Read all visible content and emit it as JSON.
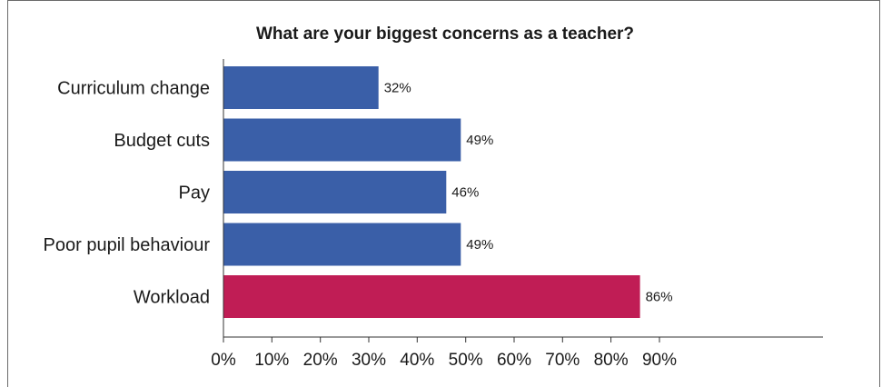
{
  "chart_data": {
    "type": "bar",
    "orientation": "horizontal",
    "title": "What are your biggest concerns as a teacher?",
    "xlabel": "",
    "ylabel": "",
    "categories": [
      "Curriculum change",
      "Budget cuts",
      "Pay",
      "Poor pupil behaviour",
      "Workload"
    ],
    "values": [
      32,
      49,
      46,
      49,
      86
    ],
    "data_labels": [
      "32%",
      "49%",
      "46%",
      "49%",
      "86%"
    ],
    "bar_colors": [
      "#3a5fa8",
      "#3a5fa8",
      "#3a5fa8",
      "#3a5fa8",
      "#c01d55"
    ],
    "xlim": [
      0,
      95
    ],
    "ticks": [
      0,
      10,
      20,
      30,
      40,
      50,
      60,
      70,
      80,
      90
    ],
    "tick_labels": [
      "0%",
      "10%",
      "20%",
      "30%",
      "40%",
      "50%",
      "60%",
      "70%",
      "80%",
      "90%"
    ],
    "grid": false,
    "legend": "none"
  }
}
